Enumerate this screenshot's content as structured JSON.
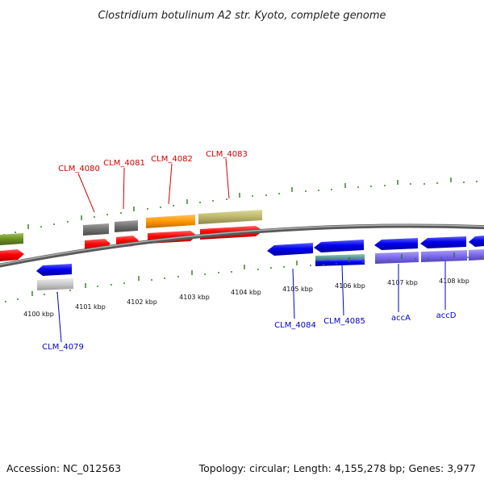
{
  "title": "Clostridium botulinum A2 str. Kyoto, complete genome",
  "footer": {
    "accession": "Accession: NC_012563",
    "summary": "Topology: circular; Length: 4,155,278 bp; Genes: 3,977"
  },
  "tick_labels": [
    "4100 kbp",
    "4101 kbp",
    "4102 kbp",
    "4103 kbp",
    "4104 kbp",
    "4105 kbp",
    "4106 kbp",
    "4107 kbp",
    "4108 kbp"
  ],
  "genes_top": [
    "CLM_4080",
    "CLM_4081",
    "CLM_4082",
    "CLM_4083"
  ],
  "genes_bottom": [
    "CLM_4079",
    "CLM_4084",
    "CLM_4085",
    "accA",
    "accD"
  ],
  "colors": {
    "forward_cds": "#ff0000",
    "reverse_cds": "#0000ee",
    "backbone": "#808080",
    "tick": "#2a7a1a",
    "label_top": "#d40000",
    "label_bottom": "#0000c8",
    "gene_gray": "#707070",
    "gene_orange": "#ff9900",
    "gene_khaki": "#bdb76b",
    "gene_olive": "#6b8e23",
    "gene_lightgray": "#c8c8c8",
    "gene_teal": "#5f9ea0",
    "gene_purple": "#7b68ee"
  }
}
